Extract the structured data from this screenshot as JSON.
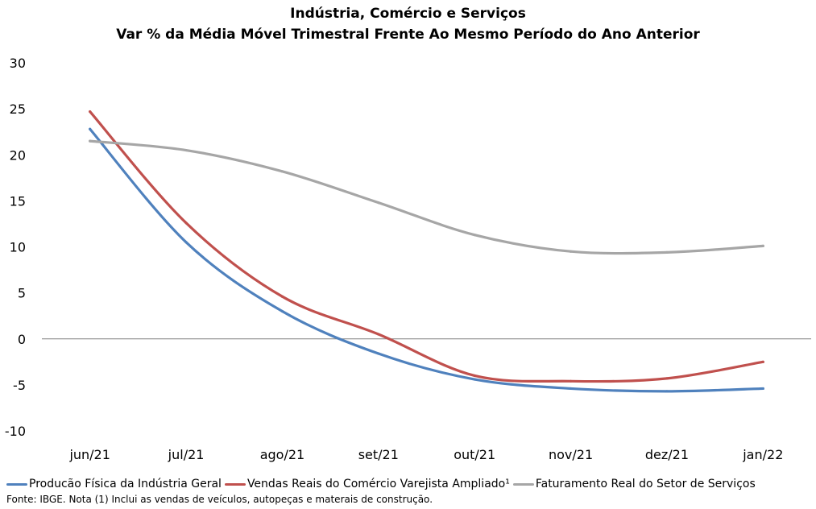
{
  "chart_data": {
    "type": "line",
    "title": "Indústria, Comércio e Serviços",
    "subtitle": "Var % da Média Móvel Trimestral Frente Ao Mesmo Período do Ano Anterior",
    "categories": [
      "jun/21",
      "jul/21",
      "ago/21",
      "set/21",
      "out/21",
      "nov/21",
      "dez/21",
      "jan/22"
    ],
    "series": [
      {
        "name": "Producão Física da Indústria Geral",
        "color": "#4F81BD",
        "values": [
          22.8,
          10.5,
          3.0,
          -1.6,
          -4.4,
          -5.4,
          -5.7,
          -5.4
        ]
      },
      {
        "name": "Vendas Reais do Comércio Varejista Ampliado¹",
        "color": "#C0504D",
        "values": [
          24.7,
          12.6,
          4.6,
          0.5,
          -4.0,
          -4.6,
          -4.3,
          -2.5
        ]
      },
      {
        "name": "Faturamento Real do Setor de Serviços",
        "color": "#A6A6A6",
        "values": [
          21.5,
          20.5,
          18.2,
          14.8,
          11.3,
          9.5,
          9.4,
          10.1
        ]
      }
    ],
    "ylim": [
      -10,
      30
    ],
    "yticks": [
      30,
      25,
      20,
      15,
      10,
      5,
      0,
      -5,
      -10
    ],
    "xlabel": "",
    "ylabel": "",
    "legend_position": "bottom",
    "grid": false,
    "footnote": "Fonte: IBGE. Nota (1) Inclui as vendas de veículos, autopeças e materais de construção."
  }
}
